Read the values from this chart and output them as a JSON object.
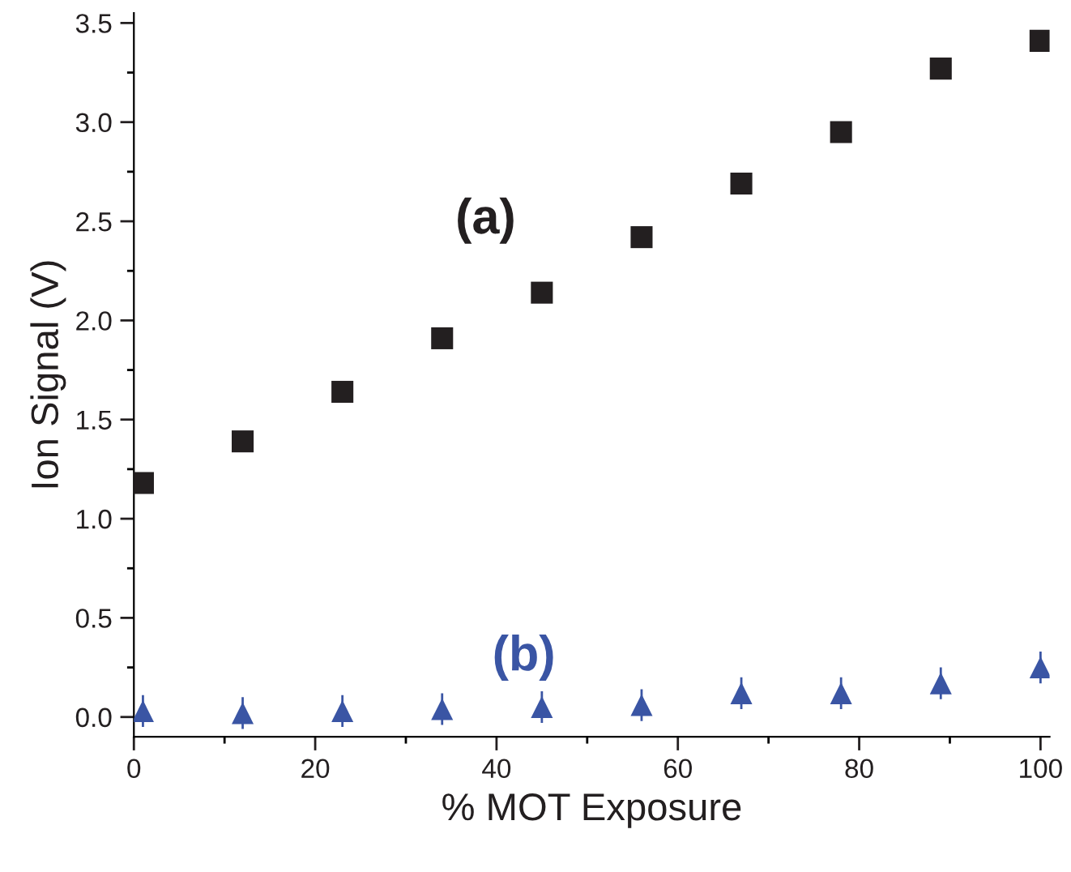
{
  "chart_data": {
    "type": "scatter",
    "xlabel": "% MOT Exposure",
    "ylabel": "Ion Signal (V)",
    "x": [
      1,
      12,
      23,
      34,
      45,
      56,
      67,
      78,
      89,
      100
    ],
    "series": [
      {
        "name": "(a)",
        "color": "#231f20",
        "marker": "square",
        "values": [
          1.18,
          1.39,
          1.64,
          1.91,
          2.14,
          2.42,
          2.69,
          2.95,
          3.27,
          3.41
        ]
      },
      {
        "name": "(b)",
        "color": "#3a55a4",
        "marker": "triangle",
        "values": [
          0.03,
          0.02,
          0.03,
          0.04,
          0.05,
          0.06,
          0.12,
          0.12,
          0.17,
          0.25
        ],
        "errors": [
          0.08,
          0.08,
          0.08,
          0.08,
          0.08,
          0.08,
          0.08,
          0.08,
          0.08,
          0.08
        ]
      }
    ],
    "xlim": [
      0,
      101
    ],
    "ylim": [
      -0.1,
      3.55
    ],
    "xticks": [
      0,
      20,
      40,
      60,
      80,
      100
    ],
    "yticks": [
      {
        "value": 0,
        "label": "0.0"
      },
      {
        "value": 0.5,
        "label": "0.5"
      },
      {
        "value": 1,
        "label": "1.0"
      },
      {
        "value": 1.5,
        "label": "1.5"
      },
      {
        "value": 2,
        "label": "2.0"
      },
      {
        "value": 2.5,
        "label": "2.5"
      },
      {
        "value": 3,
        "label": "3.0"
      },
      {
        "value": 3.5,
        "label": "3.5"
      }
    ],
    "grid": false
  }
}
